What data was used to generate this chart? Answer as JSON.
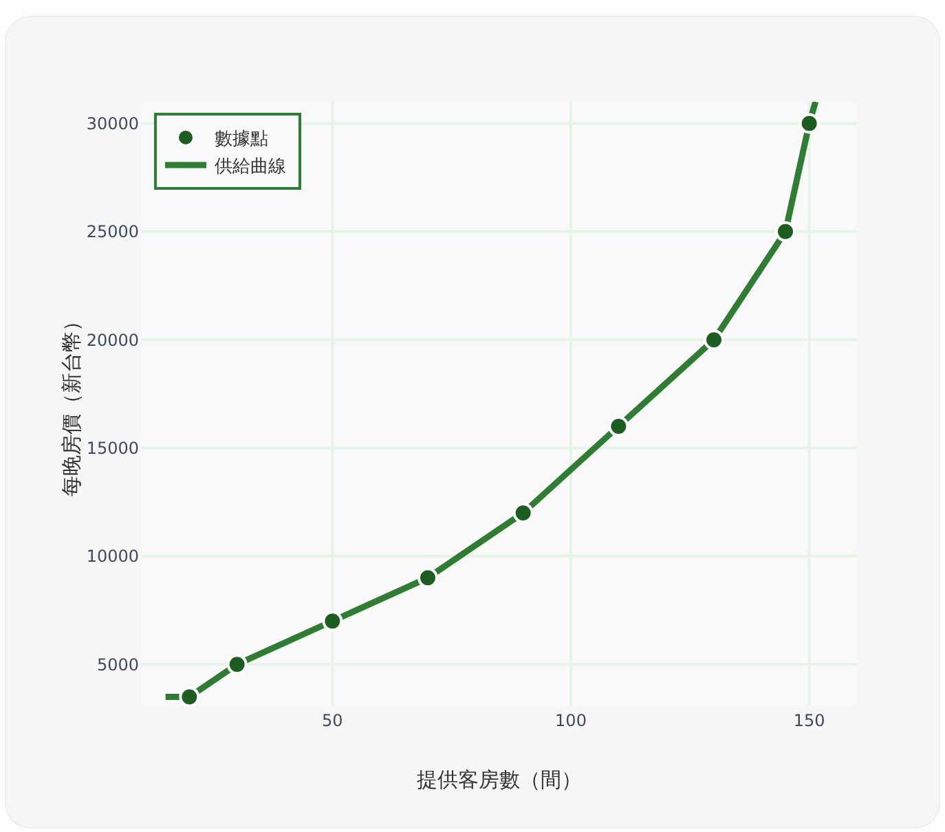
{
  "chart_data": {
    "type": "line",
    "xlabel": "提供客房數（間）",
    "ylabel": "每晚房價（新台幣）",
    "xlim": [
      10,
      160
    ],
    "xticks": [
      50,
      100,
      150
    ],
    "ylim": [
      3100,
      31000
    ],
    "yticks": [
      5000,
      10000,
      15000,
      20000,
      25000,
      30000
    ],
    "grid": true,
    "legend": "top left",
    "series": [
      {
        "name": "數據點",
        "type": "scatter",
        "marker": "circle",
        "color": "#1b5e20",
        "x": [
          20,
          30,
          50,
          70,
          90,
          110,
          130,
          145,
          150
        ],
        "values": [
          3500,
          5000,
          7000,
          9000,
          12000,
          16000,
          20000,
          25000,
          30000
        ]
      },
      {
        "name": "供給曲線",
        "type": "line",
        "line_style": "solid",
        "color": "#2e7d32",
        "x": [
          15,
          20,
          30,
          50,
          70,
          90,
          110,
          130,
          145,
          150,
          151.3
        ],
        "values": [
          3500,
          3500,
          5000,
          7000,
          9000,
          12000,
          16000,
          20000,
          25000,
          30000,
          31000
        ]
      }
    ]
  }
}
